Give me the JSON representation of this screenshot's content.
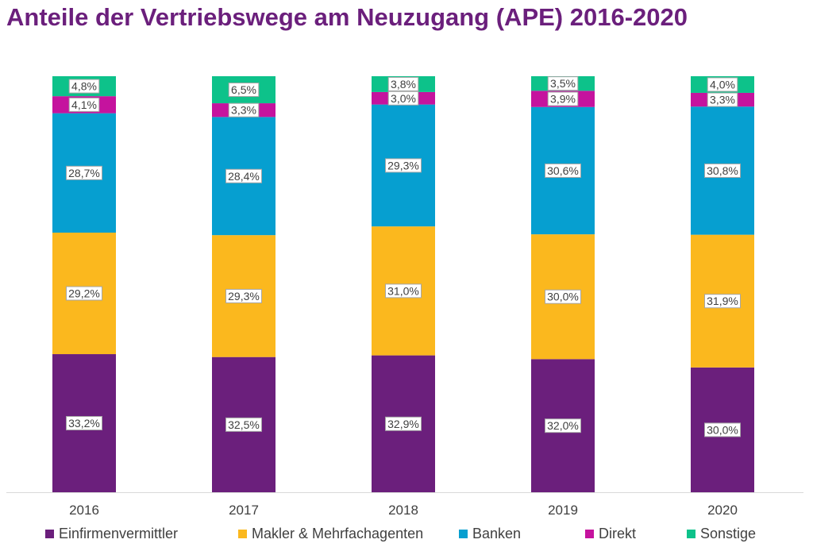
{
  "chart_data": {
    "type": "bar",
    "stacked": true,
    "title": "Anteile der Vertriebswege am Neuzugang (APE) 2016-2020",
    "categories": [
      "2016",
      "2017",
      "2018",
      "2019",
      "2020"
    ],
    "series": [
      {
        "name": "Einfirmenvermittler",
        "color": "#6b1f7c",
        "values": [
          33.2,
          32.5,
          32.9,
          32.0,
          30.0
        ],
        "labels": [
          "33,2%",
          "32,5%",
          "32,9%",
          "32,0%",
          "30,0%"
        ]
      },
      {
        "name": "Makler & Mehrfachagenten",
        "color": "#fbb81e",
        "values": [
          29.2,
          29.3,
          31.0,
          30.0,
          31.9
        ],
        "labels": [
          "29,2%",
          "29,3%",
          "31,0%",
          "30,0%",
          "31,9%"
        ]
      },
      {
        "name": "Banken",
        "color": "#069fd0",
        "values": [
          28.7,
          28.4,
          29.3,
          30.6,
          30.8
        ],
        "labels": [
          "28,7%",
          "28,4%",
          "29,3%",
          "30,6%",
          "30,8%"
        ]
      },
      {
        "name": "Direkt",
        "color": "#c5139e",
        "values": [
          4.1,
          3.3,
          3.0,
          3.9,
          3.3
        ],
        "labels": [
          "4,1%",
          "3,3%",
          "3,0%",
          "3,9%",
          "3,3%"
        ]
      },
      {
        "name": "Sonstige",
        "color": "#0dc28a",
        "values": [
          4.8,
          6.5,
          3.8,
          3.5,
          4.0
        ],
        "labels": [
          "4,8%",
          "6,5%",
          "3,8%",
          "3,5%",
          "4,0%"
        ]
      }
    ],
    "ylim": [
      0,
      100
    ],
    "grid": false,
    "legend_position": "bottom"
  }
}
